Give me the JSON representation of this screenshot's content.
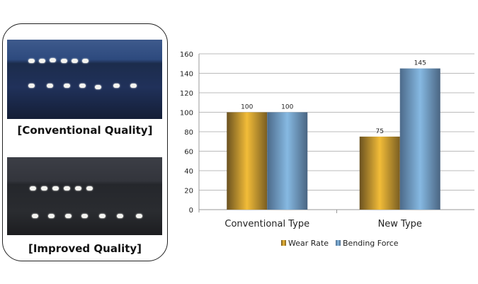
{
  "photos": [
    {
      "caption": "[Conventional Quality]"
    },
    {
      "caption": "[Improved Quality]"
    }
  ],
  "chart_data": {
    "type": "bar",
    "categories": [
      "Conventional Type",
      "New Type"
    ],
    "series": [
      {
        "name": "Wear Rate",
        "values": [
          100,
          75
        ],
        "color": "#f2bc38"
      },
      {
        "name": "Bending Force",
        "values": [
          100,
          145
        ],
        "color": "#86b9e2"
      }
    ],
    "data_labels": [
      [
        "100",
        "75"
      ],
      [
        "100",
        "145"
      ]
    ],
    "ylim": [
      0,
      160
    ],
    "yticks": [
      0,
      20,
      40,
      60,
      80,
      100,
      120,
      140,
      160
    ],
    "grid": true,
    "legend": "bottom",
    "title": "",
    "xlabel": "",
    "ylabel": ""
  }
}
